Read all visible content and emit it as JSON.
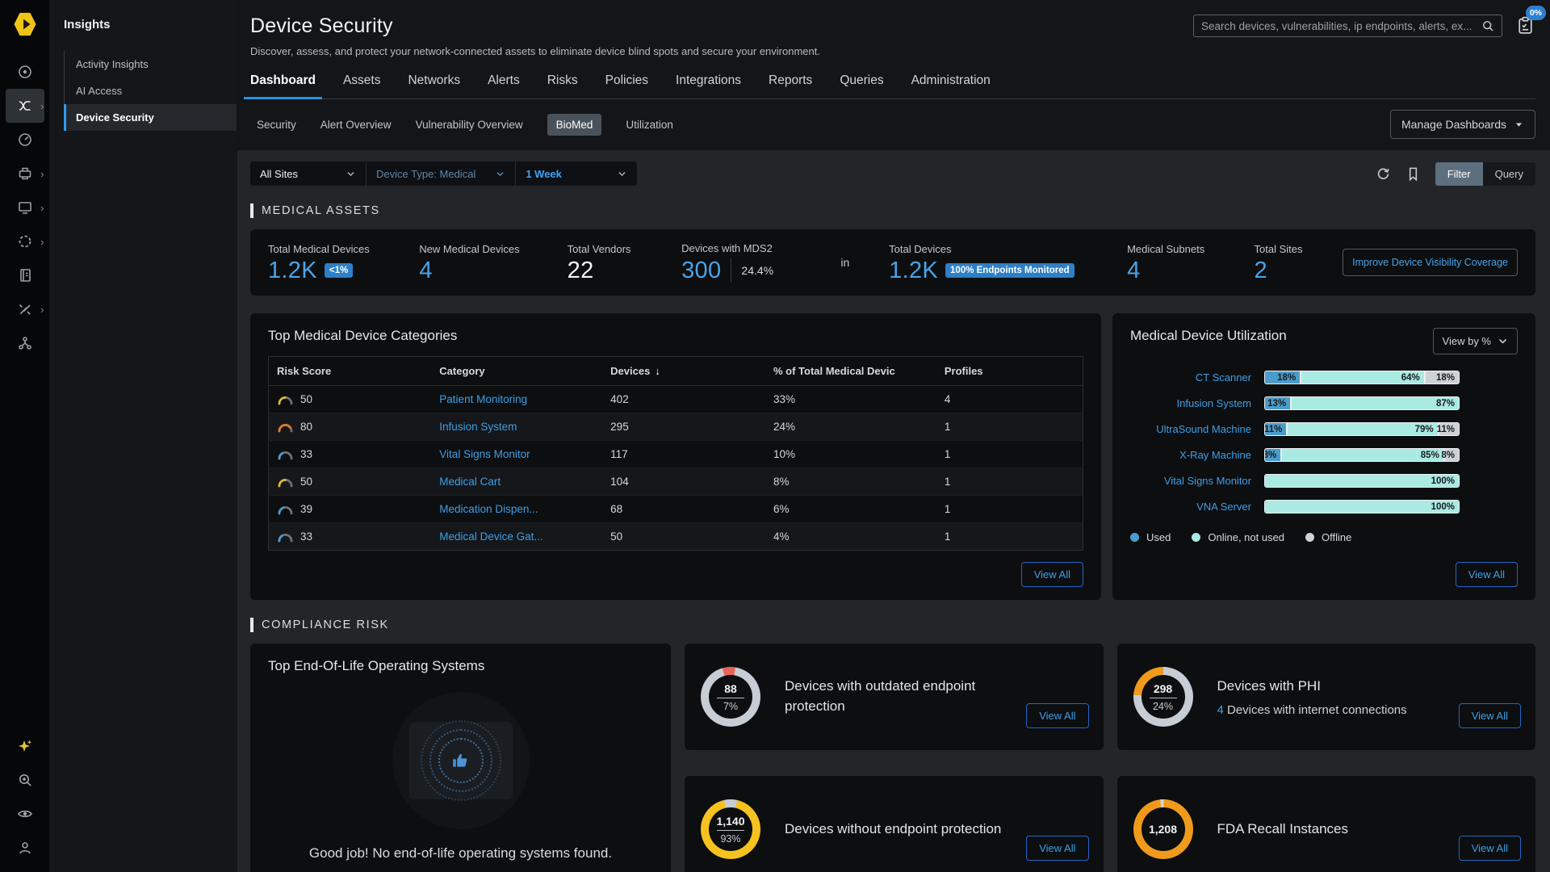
{
  "colors": {
    "accent_blue": "#3f9fe6",
    "badge_blue": "#2d7fc7",
    "tab_underline": "#2496e8",
    "used": "#4a9dcb",
    "online_not_used": "#a9eae2",
    "offline": "#cdd2d6",
    "donut_grey": "#c6cdd4",
    "status_red": "#e8615a",
    "status_orange": "#f09a1c",
    "status_yellow": "#f5c21f",
    "risk_yellow": "#e0b52f",
    "risk_orange": "#e07b28",
    "risk_blue": "#4a9dd8"
  },
  "rail": {
    "top_icons": [
      {
        "name": "radar-icon",
        "active": false,
        "chevron": false
      },
      {
        "name": "insights-flow-icon",
        "active": true,
        "chevron": true
      },
      {
        "name": "gauge-icon",
        "active": false,
        "chevron": false
      },
      {
        "name": "devices-icon",
        "active": false,
        "chevron": true
      },
      {
        "name": "displays-icon",
        "active": false,
        "chevron": true
      },
      {
        "name": "segmentation-icon",
        "active": false,
        "chevron": true
      },
      {
        "name": "policies-icon",
        "active": false,
        "chevron": false
      },
      {
        "name": "tools-icon",
        "active": false,
        "chevron": true
      },
      {
        "name": "topology-icon",
        "active": false,
        "chevron": false
      }
    ],
    "bottom_icons": [
      {
        "name": "ai-sparkle-icon"
      },
      {
        "name": "advanced-search-icon"
      },
      {
        "name": "visibility-eye-icon"
      },
      {
        "name": "user-icon"
      }
    ]
  },
  "sidebar": {
    "title": "Insights",
    "items": [
      {
        "label": "Activity Insights",
        "active": false
      },
      {
        "label": "AI Access",
        "active": false
      },
      {
        "label": "Device Security",
        "active": true
      }
    ]
  },
  "header": {
    "title": "Device Security",
    "subtitle": "Discover, assess, and protect your network-connected assets to eliminate device blind spots and secure your environment.",
    "search_placeholder": "Search devices, vulnerabilities, ip endpoints, alerts, ex...",
    "progress_badge": "0%"
  },
  "tabs": [
    {
      "label": "Dashboard",
      "active": true
    },
    {
      "label": "Assets",
      "active": false
    },
    {
      "label": "Networks",
      "active": false
    },
    {
      "label": "Alerts",
      "active": false
    },
    {
      "label": "Risks",
      "active": false
    },
    {
      "label": "Policies",
      "active": false
    },
    {
      "label": "Integrations",
      "active": false
    },
    {
      "label": "Reports",
      "active": false
    },
    {
      "label": "Queries",
      "active": false
    },
    {
      "label": "Administration",
      "active": false
    }
  ],
  "subtabs": [
    {
      "label": "Security",
      "active": false
    },
    {
      "label": "Alert Overview",
      "active": false
    },
    {
      "label": "Vulnerability Overview",
      "active": false
    },
    {
      "label": "BioMed",
      "active": true
    },
    {
      "label": "Utilization",
      "active": false
    }
  ],
  "manage_dashboards": "Manage Dashboards",
  "filter_bar": {
    "dropdowns": [
      {
        "value": "All Sites"
      },
      {
        "value": "Device Type: Medical"
      },
      {
        "value": "1 Week"
      }
    ],
    "filter_button": "Filter",
    "query_button": "Query"
  },
  "medical_assets": {
    "section_title": "MEDICAL ASSETS",
    "stats": [
      {
        "label": "Total Medical Devices",
        "value": "1.2K",
        "white": false,
        "badge": "<1%"
      },
      {
        "label": "New Medical Devices",
        "value": "4",
        "white": false
      },
      {
        "label": "Total Vendors",
        "value": "22",
        "white": true
      },
      {
        "label": "Devices with MDS2",
        "value": "300",
        "white": false,
        "aside": "24.4%"
      }
    ],
    "connector": "in",
    "stats_right": [
      {
        "label": "Total Devices",
        "value": "1.2K",
        "white": false,
        "badge": "100% Endpoints Monitored"
      },
      {
        "label": "Medical Subnets",
        "value": "4",
        "white": false
      },
      {
        "label": "Total Sites",
        "value": "2",
        "white": false
      }
    ],
    "coverage_button": "Improve Device Visibility Coverage"
  },
  "categories": {
    "title": "Top Medical Device Categories",
    "columns": [
      {
        "label": "Risk Score",
        "sorted": false
      },
      {
        "label": "Category",
        "sorted": false
      },
      {
        "label": "Devices",
        "sorted": true
      },
      {
        "label": "% of Total Medical Devic",
        "sorted": false
      },
      {
        "label": "Profiles",
        "sorted": false
      }
    ],
    "rows": [
      {
        "risk": 50,
        "risk_color": "#e0b52f",
        "category": "Patient Monitoring",
        "devices": "402",
        "pct": "33%",
        "profiles": "4"
      },
      {
        "risk": 80,
        "risk_color": "#e07b28",
        "category": "Infusion System",
        "devices": "295",
        "pct": "24%",
        "profiles": "1"
      },
      {
        "risk": 33,
        "risk_color": "#4a9dd8",
        "category": "Vital Signs Monitor",
        "devices": "117",
        "pct": "10%",
        "profiles": "1"
      },
      {
        "risk": 50,
        "risk_color": "#e0b52f",
        "category": "Medical Cart",
        "devices": "104",
        "pct": "8%",
        "profiles": "1"
      },
      {
        "risk": 39,
        "risk_color": "#4a9dd8",
        "category": "Medication Dispen...",
        "devices": "68",
        "pct": "6%",
        "profiles": "1"
      },
      {
        "risk": 33,
        "risk_color": "#4a9dd8",
        "category": "Medical Device Gat...",
        "devices": "50",
        "pct": "4%",
        "profiles": "1"
      }
    ],
    "view_all": "View All"
  },
  "utilization": {
    "title": "Medical Device Utilization",
    "view_by": "View by %",
    "rows": [
      {
        "label": "CT Scanner",
        "used": 18,
        "online": 64,
        "offline": 18
      },
      {
        "label": "Infusion System",
        "used": 13,
        "online": 87,
        "offline": 0
      },
      {
        "label": "UltraSound Machine",
        "used": 11,
        "online": 79,
        "offline": 11
      },
      {
        "label": "X-Ray Machine",
        "used": 8,
        "online": 85,
        "offline": 8
      },
      {
        "label": "Vital Signs Monitor",
        "used": 0,
        "online": 100,
        "offline": 0
      },
      {
        "label": "VNA Server",
        "used": 0,
        "online": 100,
        "offline": 0
      }
    ],
    "legend": [
      {
        "label": "Used",
        "color": "#4a9dcb"
      },
      {
        "label": "Online, not used",
        "color": "#a9eae2"
      },
      {
        "label": "Offline",
        "color": "#cdd2d6"
      }
    ],
    "view_all": "View All"
  },
  "compliance": {
    "section_title": "COMPLIANCE RISK",
    "eol_card": {
      "title": "Top End-Of-Life Operating Systems",
      "message": "Good job! No end-of-life operating systems found."
    },
    "donut_cards": [
      {
        "title": "Devices with outdated endpoint protection",
        "value": "88",
        "pct": "7%",
        "ring": {
          "start_angle": -16,
          "segments": [
            {
              "color": "#e8615a",
              "pct": 7
            },
            {
              "color": "#c6cdd4",
              "pct": 93
            }
          ]
        },
        "view_all": "View All"
      },
      {
        "title": "Devices with PHI",
        "sub_count": "4",
        "sub_text": " Devices with internet connections",
        "value": "298",
        "pct": "24%",
        "ring": {
          "start_angle": -86.4,
          "segments": [
            {
              "color": "#f09a1c",
              "pct": 24
            },
            {
              "color": "#c6cdd4",
              "pct": 76
            }
          ]
        },
        "view_all": "View All"
      },
      {
        "title": "Devices without endpoint protection",
        "value": "1,140",
        "pct": "93%",
        "ring": {
          "start_angle": -12.6,
          "segments": [
            {
              "color": "#c6cdd4",
              "pct": 7
            },
            {
              "color": "#f5c21f",
              "pct": 93
            }
          ]
        },
        "view_all": "View All"
      },
      {
        "title": "FDA Recall Instances",
        "value": "1,208",
        "pct": "",
        "ring": {
          "start_angle": -6,
          "segments": [
            {
              "color": "#cfd4d8",
              "pct": 2
            },
            {
              "color": "#f09a1c",
              "pct": 98
            }
          ]
        },
        "view_all": "View All"
      }
    ]
  },
  "chart_data": [
    {
      "type": "bar",
      "title": "Medical Device Utilization",
      "stacked": true,
      "orientation": "horizontal",
      "categories": [
        "CT Scanner",
        "Infusion System",
        "UltraSound Machine",
        "X-Ray Machine",
        "Vital Signs Monitor",
        "VNA Server"
      ],
      "series": [
        {
          "name": "Used",
          "values": [
            18,
            13,
            11,
            8,
            0,
            0
          ]
        },
        {
          "name": "Online, not used",
          "values": [
            64,
            87,
            79,
            85,
            100,
            100
          ]
        },
        {
          "name": "Offline",
          "values": [
            18,
            0,
            11,
            8,
            0,
            0
          ]
        }
      ],
      "xlabel": "",
      "ylabel": "",
      "xlim": [
        0,
        100
      ],
      "legend_position": "bottom"
    },
    {
      "type": "pie",
      "title": "Compliance risk donuts",
      "donuts": [
        {
          "label": "Devices with outdated endpoint protection",
          "value": 88,
          "pct": 7
        },
        {
          "label": "Devices with PHI",
          "value": 298,
          "pct": 24
        },
        {
          "label": "Devices without endpoint protection",
          "value": 1140,
          "pct": 93
        },
        {
          "label": "FDA Recall Instances",
          "value": 1208,
          "pct": 100
        }
      ]
    }
  ]
}
